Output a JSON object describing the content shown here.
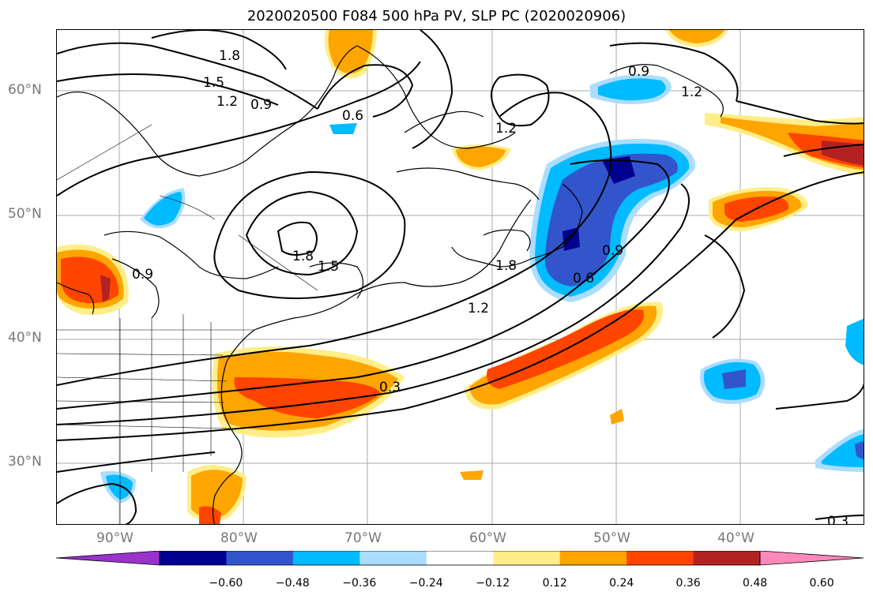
{
  "title": "2020020500 F084 500 hPa PV, SLP PC (2020020906)",
  "lat_labels": [
    "60°N",
    "50°N",
    "40°N",
    "30°N"
  ],
  "lon_labels": [
    "90°W",
    "80°W",
    "70°W",
    "60°W",
    "50°W",
    "40°W"
  ],
  "colorbar": {
    "tick_labels": [
      "−0.60",
      "−0.48",
      "−0.36",
      "−0.24",
      "−0.12",
      "0.12",
      "0.24",
      "0.36",
      "0.48",
      "0.60"
    ],
    "colors": [
      "#9933cc",
      "#000090",
      "#3355cc",
      "#00bbff",
      "#aaddff",
      "#ffffff",
      "#ffee88",
      "#ffa500",
      "#ff4400",
      "#b22222",
      "#ff88bb"
    ]
  },
  "contour_labels": [
    "1.8",
    "1.5",
    "1.2",
    "0.9",
    "0.6",
    "1.2",
    "0.9",
    "1.2",
    "1.8",
    "1.5",
    "0.9",
    "1.8",
    "1.2",
    "0.9",
    "0.6",
    "0.3",
    "0.3"
  ],
  "colors": {
    "yellow": "#ffee88",
    "orange": "#ffa500",
    "red": "#ff4400",
    "darkred": "#b22222",
    "lightblue": "#aaddff",
    "cyan": "#00bbff",
    "blue": "#3355cc",
    "navy": "#000090"
  }
}
